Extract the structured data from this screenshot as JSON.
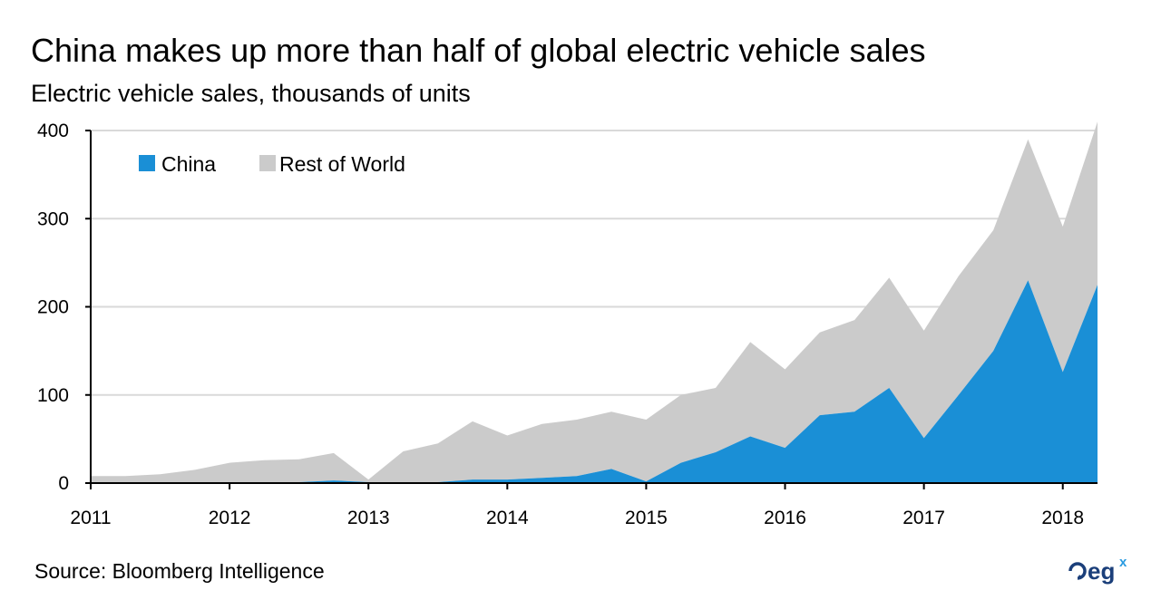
{
  "header": {
    "title": "China makes up more than half of global electric vehicle sales",
    "subtitle": "Electric vehicle sales, thousands of units"
  },
  "footer": {
    "source": "Source: Bloomberg Intelligence",
    "logo_text": "eg",
    "logo_sup": "x"
  },
  "colors": {
    "china": "#1a8fd6",
    "rest_of_world": "#cbcbcb",
    "grid": "#d9d9d9",
    "logo": "#1b3f7a"
  },
  "chart_data": {
    "type": "area",
    "stacked": true,
    "title": "China makes up more than half of global electric vehicle sales",
    "subtitle": "Electric vehicle sales, thousands of units",
    "xlabel": "",
    "ylabel": "",
    "ylim": [
      0,
      400
    ],
    "yticks": [
      0,
      100,
      200,
      300,
      400
    ],
    "xlim": [
      2011,
      2018.25
    ],
    "xticks": [
      2011,
      2012,
      2013,
      2014,
      2015,
      2016,
      2017,
      2018
    ],
    "grid": true,
    "legend_position": "top-left",
    "x": [
      2011.0,
      2011.25,
      2011.5,
      2011.75,
      2012.0,
      2012.25,
      2012.5,
      2012.75,
      2013.0,
      2013.25,
      2013.5,
      2013.75,
      2014.0,
      2014.25,
      2014.5,
      2014.75,
      2015.0,
      2015.25,
      2015.5,
      2015.75,
      2016.0,
      2016.25,
      2016.5,
      2016.75,
      2017.0,
      2017.25,
      2017.5,
      2017.75,
      2018.0,
      2018.25
    ],
    "series": [
      {
        "name": "China",
        "values": [
          0,
          0,
          0,
          0,
          1,
          1,
          1,
          3,
          1,
          1,
          1,
          4,
          4,
          6,
          8,
          16,
          2,
          23,
          35,
          53,
          40,
          77,
          81,
          108,
          51,
          100,
          150,
          230,
          126,
          225
        ]
      },
      {
        "name": "Rest of World",
        "values": [
          8,
          8,
          10,
          15,
          22,
          25,
          26,
          31,
          3,
          35,
          44,
          66,
          50,
          61,
          64,
          65,
          70,
          77,
          73,
          107,
          89,
          94,
          104,
          125,
          122,
          135,
          137,
          160,
          165,
          185
        ]
      }
    ]
  }
}
